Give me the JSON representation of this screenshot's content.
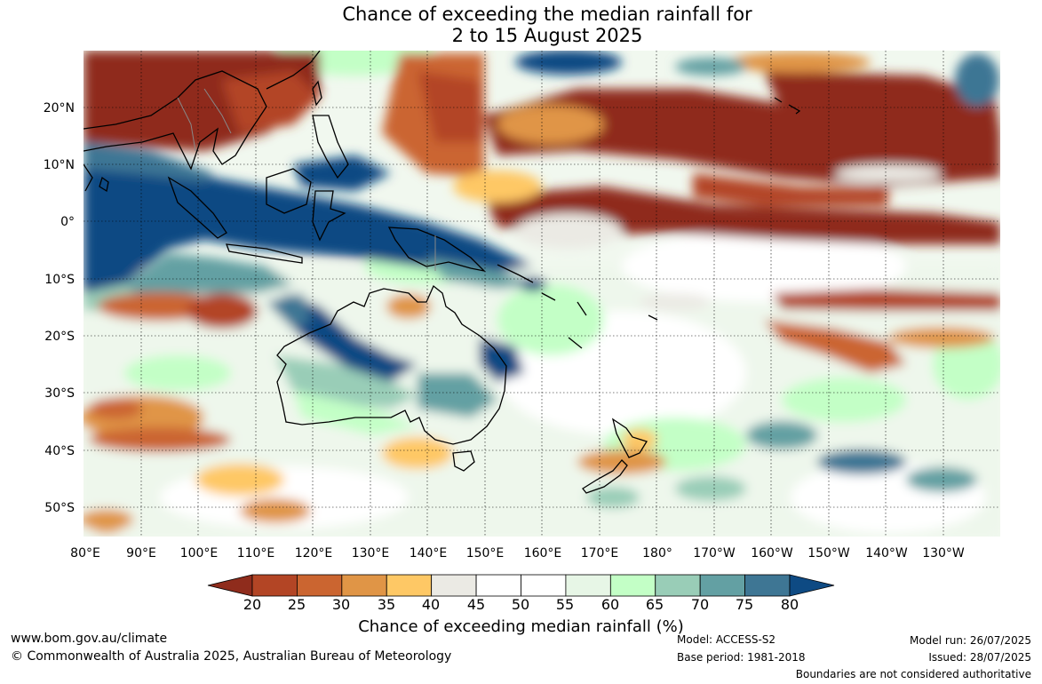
{
  "title": {
    "line1": "Chance of exceeding the median rainfall for",
    "line2": "2 to 15 August 2025"
  },
  "map": {
    "lat_labels": [
      "20°N",
      "10°N",
      "0°",
      "10°S",
      "20°S",
      "30°S",
      "40°S",
      "50°S"
    ],
    "lon_labels": [
      "80°E",
      "90°E",
      "100°E",
      "110°E",
      "120°E",
      "130°E",
      "140°E",
      "150°E",
      "160°E",
      "170°E",
      "180°",
      "170°W",
      "160°W",
      "150°W",
      "140°W",
      "130°W"
    ]
  },
  "legend": {
    "title": "Chance of exceeding median rainfall (%)",
    "ticks": [
      "20",
      "25",
      "30",
      "35",
      "40",
      "45",
      "50",
      "55",
      "60",
      "65",
      "70",
      "75",
      "80"
    ],
    "colors": [
      "#8f2c1c",
      "#b34525",
      "#cb6530",
      "#e09546",
      "#fec865",
      "#ebeae4",
      "#ffffff",
      "#ffffff",
      "#e7f6e6",
      "#c3ffc6",
      "#99cdb7",
      "#63a0a3",
      "#3e7694",
      "#0e4a83"
    ]
  },
  "footer": {
    "website": "www.bom.gov.au/climate",
    "copyright": "© Commonwealth of Australia 2025, Australian Bureau of Meteorology",
    "model": "Model: ACCESS-S2",
    "base_period": "Base period: 1981-2018",
    "model_run": "Model run: 26/07/2025",
    "issued": "Issued: 28/07/2025",
    "disclaimer": "Boundaries are not considered authoritative"
  }
}
